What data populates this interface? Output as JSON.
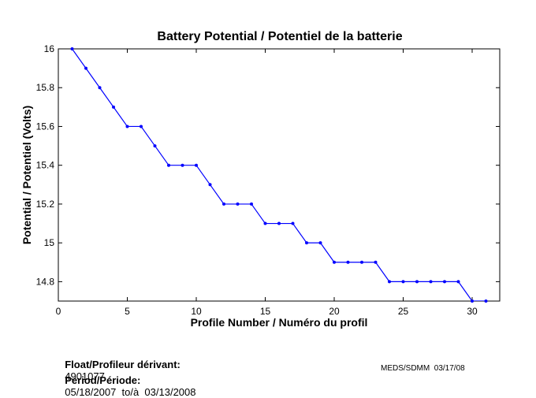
{
  "chart_data": {
    "type": "line",
    "title": "Battery Potential / Potentiel de la batterie",
    "xlabel": "Profile Number / Numéro du profil",
    "ylabel": "Potential / Potentiel (Volts)",
    "xlim": [
      0,
      32
    ],
    "ylim": [
      14.7,
      16
    ],
    "xticks": [
      0,
      5,
      10,
      15,
      20,
      25,
      30
    ],
    "yticks": [
      14.8,
      15,
      15.2,
      15.4,
      15.6,
      15.8,
      16
    ],
    "xtick_labels": [
      "0",
      "5",
      "10",
      "15",
      "20",
      "25",
      "30"
    ],
    "ytick_labels": [
      "14.8",
      "15",
      "15.2",
      "15.4",
      "15.6",
      "15.8",
      "16"
    ],
    "grid": false,
    "line_color": "#0000ff",
    "series": [
      {
        "x": [
          1,
          2,
          3,
          4,
          5,
          6,
          7,
          8,
          9,
          10,
          11,
          12,
          13,
          14,
          15,
          16,
          17,
          18,
          19,
          20,
          21,
          22,
          23,
          24,
          25,
          26,
          27,
          28,
          29,
          30,
          31
        ],
        "values": [
          16.0,
          15.9,
          15.8,
          15.7,
          15.6,
          15.6,
          15.5,
          15.4,
          15.4,
          15.4,
          15.3,
          15.2,
          15.2,
          15.2,
          15.1,
          15.1,
          15.1,
          15.0,
          15.0,
          14.9,
          14.9,
          14.9,
          14.9,
          14.8,
          14.8,
          14.8,
          14.8,
          14.8,
          14.8,
          14.7,
          14.7
        ]
      }
    ]
  },
  "footer": {
    "float_label": "Float/Profileur dérivant:",
    "float_value": "4901077",
    "period_label": "Period/Période:",
    "period_value": "05/18/2007  to/à  03/13/2008",
    "credit": "MEDS/SDMM  03/17/08"
  }
}
